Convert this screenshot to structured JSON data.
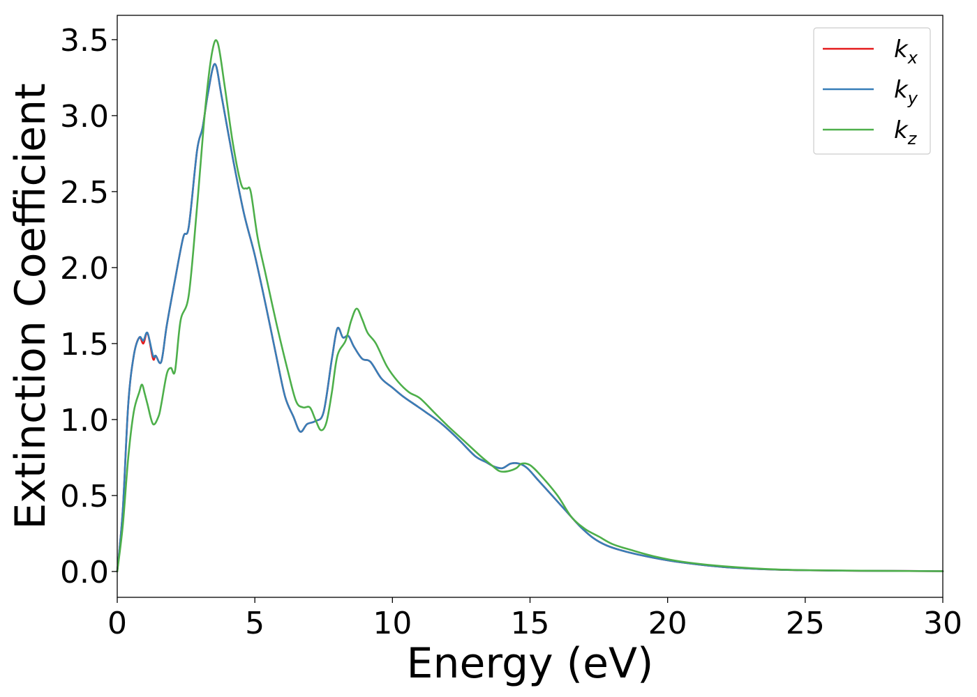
{
  "chart_data": {
    "type": "line",
    "xlabel": "Energy (eV)",
    "ylabel": "Extinction Coefficient",
    "xlim": [
      0,
      30
    ],
    "ylim": [
      -0.17,
      3.66
    ],
    "xticks": [
      "0",
      "5",
      "10",
      "15",
      "20",
      "25",
      "30"
    ],
    "yticks": [
      "0.0",
      "0.5",
      "1.0",
      "1.5",
      "2.0",
      "2.5",
      "3.0",
      "3.5"
    ],
    "grid": false,
    "legend_position": "top-right",
    "series": [
      {
        "name": "k_x",
        "legend_base": "k",
        "legend_sub": "x",
        "color": "#e41a1c",
        "x": [
          0,
          0.2,
          0.4,
          0.6,
          0.8,
          0.95,
          1.1,
          1.3,
          1.4,
          1.6,
          1.8,
          2.1,
          2.4,
          2.6,
          2.9,
          3.1,
          3.3,
          3.55,
          3.8,
          4.2,
          4.6,
          5.0,
          5.4,
          5.8,
          6.1,
          6.4,
          6.65,
          6.9,
          7.2,
          7.5,
          7.8,
          8.0,
          8.2,
          8.4,
          8.6,
          8.9,
          9.2,
          9.6,
          10.0,
          10.4,
          10.8,
          11.2,
          11.8,
          12.4,
          13.0,
          13.4,
          13.7,
          14.0,
          14.3,
          14.6,
          14.9,
          15.3,
          15.8,
          16.3,
          16.8,
          17.3,
          17.8,
          18.5,
          19.5,
          20.5,
          22,
          24,
          26,
          28,
          30
        ],
        "values": [
          0.0,
          0.4,
          1.1,
          1.42,
          1.54,
          1.5,
          1.57,
          1.4,
          1.42,
          1.38,
          1.62,
          1.92,
          2.2,
          2.27,
          2.77,
          2.92,
          3.15,
          3.34,
          3.12,
          2.72,
          2.36,
          2.08,
          1.75,
          1.4,
          1.15,
          1.02,
          0.92,
          0.97,
          0.99,
          1.05,
          1.4,
          1.6,
          1.54,
          1.55,
          1.48,
          1.4,
          1.38,
          1.27,
          1.21,
          1.15,
          1.1,
          1.05,
          0.97,
          0.87,
          0.76,
          0.72,
          0.69,
          0.68,
          0.71,
          0.71,
          0.68,
          0.6,
          0.5,
          0.4,
          0.3,
          0.22,
          0.17,
          0.13,
          0.09,
          0.06,
          0.03,
          0.012,
          0.006,
          0.004,
          0.002
        ]
      },
      {
        "name": "k_y",
        "legend_base": "k",
        "legend_sub": "y",
        "color": "#377eb8",
        "x": [
          0,
          0.2,
          0.4,
          0.6,
          0.8,
          0.95,
          1.1,
          1.3,
          1.4,
          1.6,
          1.8,
          2.1,
          2.4,
          2.6,
          2.9,
          3.1,
          3.3,
          3.55,
          3.8,
          4.2,
          4.6,
          5.0,
          5.4,
          5.8,
          6.1,
          6.4,
          6.65,
          6.9,
          7.2,
          7.5,
          7.8,
          8.0,
          8.2,
          8.4,
          8.6,
          8.9,
          9.2,
          9.6,
          10.0,
          10.4,
          10.8,
          11.2,
          11.8,
          12.4,
          13.0,
          13.4,
          13.7,
          14.0,
          14.3,
          14.6,
          14.9,
          15.3,
          15.8,
          16.3,
          16.8,
          17.3,
          17.8,
          18.5,
          19.5,
          20.5,
          22,
          24,
          26,
          28,
          30
        ],
        "values": [
          0.0,
          0.4,
          1.1,
          1.42,
          1.54,
          1.52,
          1.57,
          1.42,
          1.42,
          1.38,
          1.62,
          1.92,
          2.2,
          2.27,
          2.77,
          2.92,
          3.15,
          3.34,
          3.12,
          2.72,
          2.36,
          2.08,
          1.75,
          1.4,
          1.15,
          1.02,
          0.92,
          0.97,
          0.99,
          1.05,
          1.4,
          1.6,
          1.54,
          1.55,
          1.48,
          1.4,
          1.38,
          1.27,
          1.21,
          1.15,
          1.1,
          1.05,
          0.97,
          0.87,
          0.76,
          0.72,
          0.69,
          0.68,
          0.71,
          0.71,
          0.68,
          0.6,
          0.5,
          0.4,
          0.3,
          0.22,
          0.17,
          0.13,
          0.09,
          0.06,
          0.03,
          0.012,
          0.006,
          0.004,
          0.002
        ]
      },
      {
        "name": "k_z",
        "legend_base": "k",
        "legend_sub": "z",
        "color": "#4daf4a",
        "x": [
          0,
          0.2,
          0.4,
          0.6,
          0.8,
          0.9,
          1.0,
          1.1,
          1.3,
          1.5,
          1.6,
          1.8,
          1.95,
          2.1,
          2.3,
          2.6,
          2.9,
          3.2,
          3.45,
          3.65,
          3.9,
          4.2,
          4.5,
          4.7,
          4.85,
          5.1,
          5.4,
          5.8,
          6.2,
          6.5,
          6.75,
          7.0,
          7.2,
          7.4,
          7.6,
          7.8,
          8.0,
          8.3,
          8.5,
          8.7,
          8.9,
          9.1,
          9.4,
          9.8,
          10.2,
          10.6,
          11.0,
          11.5,
          12.0,
          12.6,
          13.2,
          13.6,
          13.9,
          14.2,
          14.5,
          14.7,
          15.0,
          15.4,
          16.0,
          16.5,
          17.0,
          17.5,
          18.0,
          18.7,
          19.5,
          20.5,
          22,
          24,
          26,
          28,
          30
        ],
        "values": [
          0.0,
          0.3,
          0.75,
          1.05,
          1.18,
          1.23,
          1.17,
          1.1,
          0.97,
          1.02,
          1.1,
          1.3,
          1.34,
          1.32,
          1.65,
          1.82,
          2.4,
          3.05,
          3.42,
          3.48,
          3.2,
          2.82,
          2.55,
          2.52,
          2.5,
          2.2,
          1.95,
          1.62,
          1.32,
          1.12,
          1.08,
          1.08,
          1.0,
          0.93,
          0.98,
          1.18,
          1.42,
          1.52,
          1.65,
          1.73,
          1.66,
          1.57,
          1.5,
          1.35,
          1.25,
          1.18,
          1.14,
          1.05,
          0.96,
          0.86,
          0.76,
          0.7,
          0.66,
          0.66,
          0.68,
          0.71,
          0.7,
          0.63,
          0.5,
          0.36,
          0.28,
          0.23,
          0.18,
          0.14,
          0.1,
          0.065,
          0.035,
          0.013,
          0.007,
          0.004,
          0.002
        ]
      }
    ]
  }
}
